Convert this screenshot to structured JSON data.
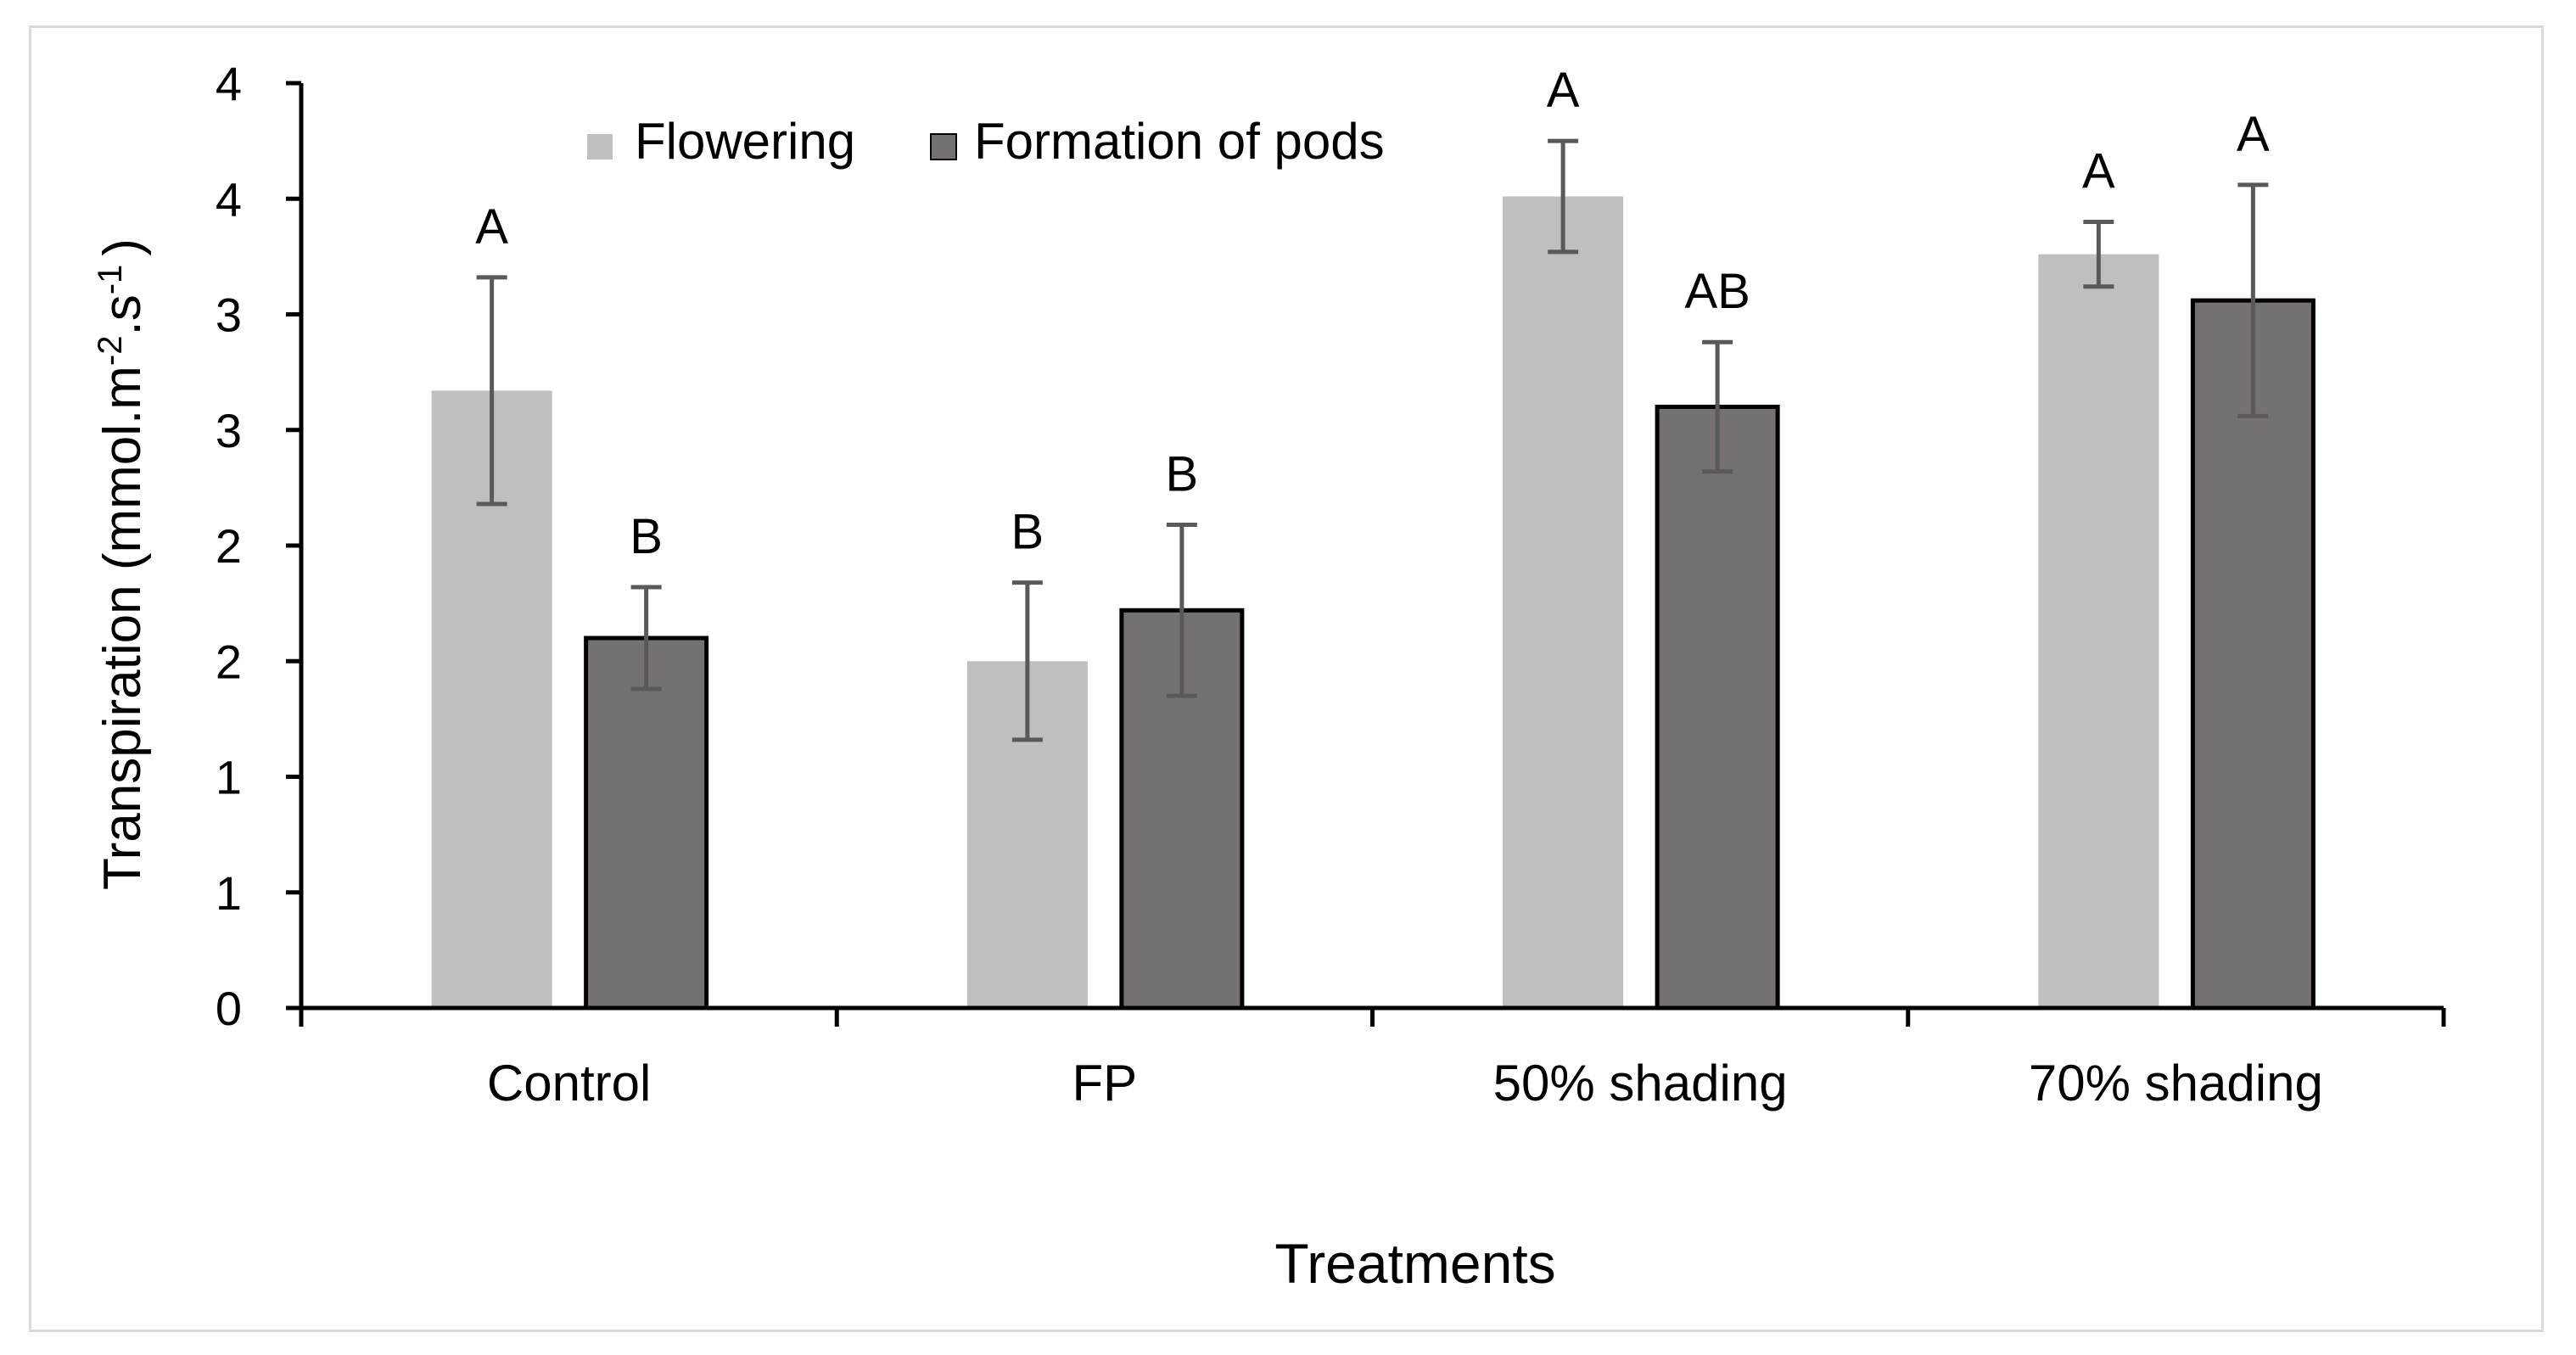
{
  "chart_data": {
    "type": "bar",
    "title": "",
    "xlabel": "Treatments",
    "ylabel": "Transpiration  (mmol.m-2.s-1)",
    "ylabel_parts": {
      "main": "Transpiration  (mmol.m",
      "sup1": "-2",
      "mid": ".s",
      "sup2": "-1",
      "end": ")"
    },
    "ylim": [
      0,
      4
    ],
    "ytick_values": [
      0,
      0.5,
      1,
      1.5,
      2,
      2.5,
      3,
      3.5,
      4
    ],
    "ytick_labels": [
      "0",
      "1",
      "1",
      "2",
      "2",
      "3",
      "3",
      "4",
      "4"
    ],
    "categories": [
      "Control",
      "FP",
      "50% shading",
      "70% shading"
    ],
    "legend_position": "top-center",
    "series": [
      {
        "name": "Flowering",
        "color": "#bfbfbf",
        "stroke": "none",
        "values": [
          2.67,
          1.5,
          3.51,
          3.26
        ],
        "errors": [
          0.49,
          0.34,
          0.24,
          0.14
        ],
        "letters": [
          "A",
          "B",
          "A",
          "A"
        ]
      },
      {
        "name": "Formation of pods",
        "color": "#767171",
        "stroke": "#000000",
        "values": [
          1.6,
          1.72,
          2.6,
          3.06
        ],
        "errors": [
          0.22,
          0.37,
          0.28,
          0.5
        ],
        "letters": [
          "B",
          "B",
          "AB",
          "A"
        ]
      }
    ],
    "axis_color": "#000000",
    "errorbar_color": "#595959"
  }
}
